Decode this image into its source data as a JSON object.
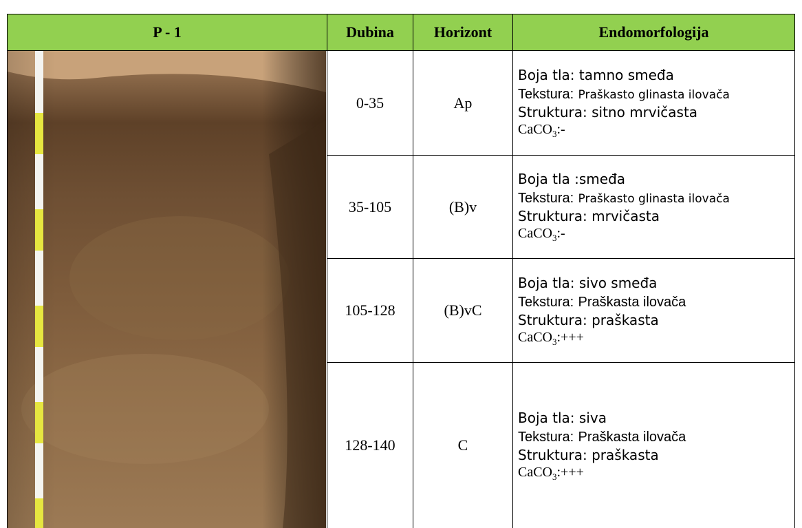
{
  "header": {
    "profile": "P - 1",
    "columns": [
      "Dubina",
      "Horizont",
      "Endomorfologija"
    ]
  },
  "rows": [
    {
      "depth": "0-35",
      "horizon": "Ap",
      "description": {
        "color": "Boja tla: tamno smeđa",
        "texture_label": "Tekstura:",
        "texture": "Praškasto glinasta ilovača",
        "structure": "Struktura: sitno mrvičasta",
        "caco3": [
          "CaCO",
          "3",
          ":-"
        ]
      }
    },
    {
      "depth": "35-105",
      "horizon": "(B)v",
      "description": {
        "color": "Boja tla :smeđa",
        "texture_label": "Tekstura:",
        "texture": "Praškasto glinasta ilovača",
        "structure": "Struktura: mrvičasta",
        "caco3": [
          "CaCO",
          "3",
          ":-"
        ]
      }
    },
    {
      "depth": "105-128",
      "horizon": "(B)vC",
      "description": {
        "color": "Boja tla: sivo smeđa",
        "texture_label": "Tekstura:",
        "texture": "Praškasta ilovača",
        "structure": "Struktura: praškasta",
        "caco3": [
          "CaCO",
          "3",
          ":+++"
        ]
      }
    },
    {
      "depth": "128-140",
      "horizon": "C",
      "description": {
        "color": "Boja tla: siva",
        "texture_label": "Tekstura:",
        "texture": "Praškasta ilovača",
        "structure": "Struktura: praškasta",
        "caco3": [
          "CaCO",
          "3",
          ":+++"
        ]
      }
    }
  ]
}
